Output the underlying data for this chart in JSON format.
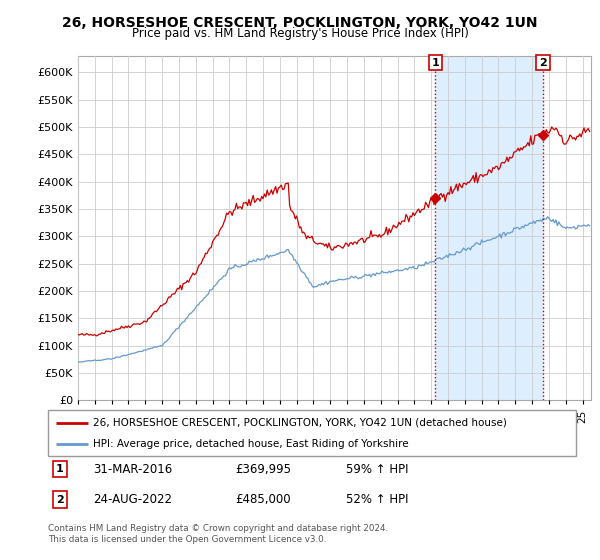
{
  "title": "26, HORSESHOE CRESCENT, POCKLINGTON, YORK, YO42 1UN",
  "subtitle": "Price paid vs. HM Land Registry's House Price Index (HPI)",
  "property_label": "26, HORSESHOE CRESCENT, POCKLINGTON, YORK, YO42 1UN (detached house)",
  "hpi_label": "HPI: Average price, detached house, East Riding of Yorkshire",
  "sale1_date": "31-MAR-2016",
  "sale1_price": "£369,995",
  "sale1_pct": "59% ↑ HPI",
  "sale2_date": "24-AUG-2022",
  "sale2_price": "£485,000",
  "sale2_pct": "52% ↑ HPI",
  "footnote": "Contains HM Land Registry data © Crown copyright and database right 2024.\nThis data is licensed under the Open Government Licence v3.0.",
  "property_color": "#cc0000",
  "hpi_color": "#6699cc",
  "shade_color": "#ddeeff",
  "vline_color": "#cc0000",
  "ylim": [
    0,
    630000
  ],
  "xlim_start": 1995.0,
  "xlim_end": 2025.5,
  "sale1_x": 2016.25,
  "sale1_y": 369995,
  "sale2_x": 2022.65,
  "sale2_y": 485000,
  "background_color": "#ffffff",
  "grid_color": "#cccccc"
}
